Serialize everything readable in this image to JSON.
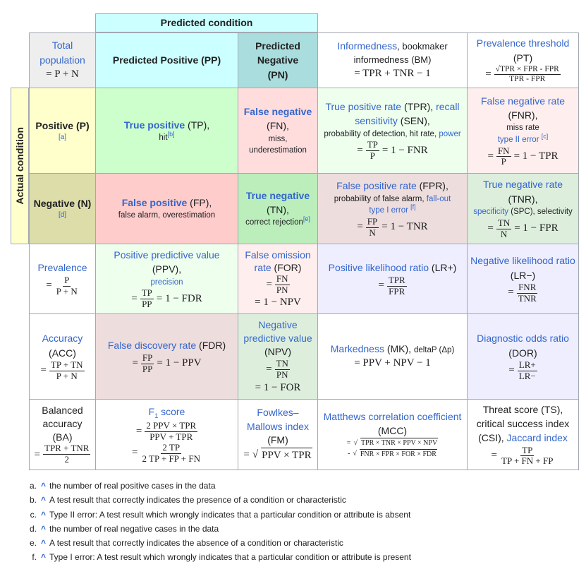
{
  "header": {
    "predicted_condition": "Predicted condition",
    "actual_condition": "Actual condition"
  },
  "total": {
    "label": "Total population",
    "formula": "= P + N"
  },
  "pp": "Predicted Positive (PP)",
  "pn": "Predicted Negative (PN)",
  "bm": {
    "link": "Informedness",
    "rest": ", bookmaker informedness (BM)",
    "formula": "= TPR + TNR − 1"
  },
  "pt": {
    "link": "Prevalence threshold",
    "abbr": "(PT)",
    "num": "√TPR × FPR - FPR",
    "den": "TPR - FPR",
    "eq": "="
  },
  "pos": {
    "label": "Positive (P)",
    "note": "[a]"
  },
  "neg": {
    "label": "Negative (N)",
    "note": "[d]"
  },
  "tp": {
    "link": "True positive",
    "abbr": " (TP),",
    "hit": "hit",
    "note": "[b]"
  },
  "fn": {
    "link": "False negative",
    "abbr": "(FN),",
    "l2": "miss,",
    "l3": "underestimation"
  },
  "tpr": {
    "l1a": "True positive rate",
    "l1b": " (TPR), ",
    "l1c": "recall",
    "l2a": "sensitivity",
    "l2b": " (SEN),",
    "l3a": "probability of detection, hit rate, ",
    "l3b": "power",
    "num": "TP",
    "den": "P",
    "rest": "= 1 − FNR",
    "eq": "="
  },
  "fnr": {
    "link": "False negative rate",
    "abbr": "(FNR),",
    "l2": "miss rate",
    "l3": "type II error",
    "note": "[c]",
    "num": "FN",
    "den": "P",
    "rest": "= 1 − TPR",
    "eq": "="
  },
  "fp": {
    "link": "False positive",
    "abbr": " (FP),",
    "l2": "false alarm, overestimation"
  },
  "tn": {
    "link": "True negative",
    "abbr": "(TN),",
    "l2": "correct rejection",
    "note": "[e]"
  },
  "fpr": {
    "l1a": "False positive rate",
    "l1b": " (FPR),",
    "l2a": "probability of false alarm, ",
    "l2b": "fall-out",
    "l3": "type I error",
    "note": "[f]",
    "num": "FP",
    "den": "N",
    "rest": "= 1 − TNR",
    "eq": "="
  },
  "tnr": {
    "link": "True negative rate",
    "abbr": "(TNR),",
    "l3a": "specificity",
    "l3b": " (SPC), selectivity",
    "num": "TN",
    "den": "N",
    "rest": "= 1 − FPR",
    "eq": "="
  },
  "prev": {
    "link": "Prevalence",
    "num": "P",
    "den": "P + N",
    "eq": "="
  },
  "ppv": {
    "l1a": "Positive predictive value",
    "l1b": " (PPV),",
    "l2": "precision",
    "num": "TP",
    "den": "PP",
    "rest": "= 1 − FDR",
    "eq": "="
  },
  "for": {
    "l1": "False omission",
    "l2a": "rate",
    "l2b": " (FOR)",
    "num": "FN",
    "den": "PN",
    "rest": "= 1 − NPV",
    "eq": "="
  },
  "lrp": {
    "link": "Positive likelihood ratio",
    "abbr": " (LR+)",
    "num": "TPR",
    "den": "FPR",
    "eq": "="
  },
  "lrn": {
    "link": "Negative likelihood ratio",
    "abbr": "(LR−)",
    "num": "FNR",
    "den": "TNR",
    "eq": "="
  },
  "acc": {
    "link": "Accuracy",
    "abbr": "(ACC)",
    "num": "TP + TN",
    "den": "P + N",
    "eq": "="
  },
  "fdr": {
    "l1a": "False discovery rate",
    "l1b": " (FDR)",
    "num": "FP",
    "den": "PP",
    "rest": "= 1 − PPV",
    "eq": "="
  },
  "npv": {
    "l1": "Negative",
    "l2": "predictive value",
    "abbr": "(NPV)",
    "num": "TN",
    "den": "PN",
    "rest": "= 1 − FOR",
    "eq": "="
  },
  "mk": {
    "link": "Markedness",
    "abbr": " (MK), ",
    "extra": "deltaP (Δp)",
    "formula": "= PPV + NPV − 1"
  },
  "dor": {
    "link": "Diagnostic odds ratio",
    "abbr": "(DOR)",
    "num": "LR+",
    "den": "LR−",
    "eq": "="
  },
  "ba": {
    "l1": "Balanced",
    "l2": "accuracy",
    "abbr": "(BA)",
    "num": "TPR + TNR",
    "den": "2",
    "eq": "="
  },
  "f1": {
    "link": "F",
    "sub": "1",
    "rest": " score",
    "num1": "2 PPV × TPR",
    "den1": "PPV + TPR",
    "num2": "2 TP",
    "den2": "2 TP + FP + FN",
    "eq": "="
  },
  "fm": {
    "l1": "Fowlkes–",
    "l2": "Mallows index",
    "abbr": "(FM)",
    "pre": "= ",
    "sqrt": "PPV × TPR",
    "root": "√"
  },
  "mcc": {
    "link": "Matthews correlation coefficient",
    "abbr": "(MCC)",
    "pre1": "= ",
    "f1": "TPR × TNR × PPV × NPV",
    "pre2": "- ",
    "f2": "FNR × FPR × FOR × FDR",
    "root": "√"
  },
  "ts": {
    "l1": "Threat score (TS),",
    "l2": "critical success index",
    "l3a": "(CSI), ",
    "l3b": "Jaccard index",
    "num": "TP",
    "den": "TP + FN + FP",
    "eq": "="
  },
  "notes": [
    {
      "letter": "a.",
      "caret": "^",
      "text": "the number of real positive cases in the data"
    },
    {
      "letter": "b.",
      "caret": "^",
      "text": "A test result that correctly indicates the presence of a condition or characteristic"
    },
    {
      "letter": "c.",
      "caret": "^",
      "text": "Type II error: A test result which wrongly indicates that a particular condition or attribute is absent"
    },
    {
      "letter": "d.",
      "caret": "^",
      "text": "the number of real negative cases in the data"
    },
    {
      "letter": "e.",
      "caret": "^",
      "text": "A test result that correctly indicates the absence of a condition or characteristic"
    },
    {
      "letter": "f.",
      "caret": "^",
      "text": "Type I error: A test result which wrongly indicates that a particular condition or attribute is present"
    }
  ]
}
